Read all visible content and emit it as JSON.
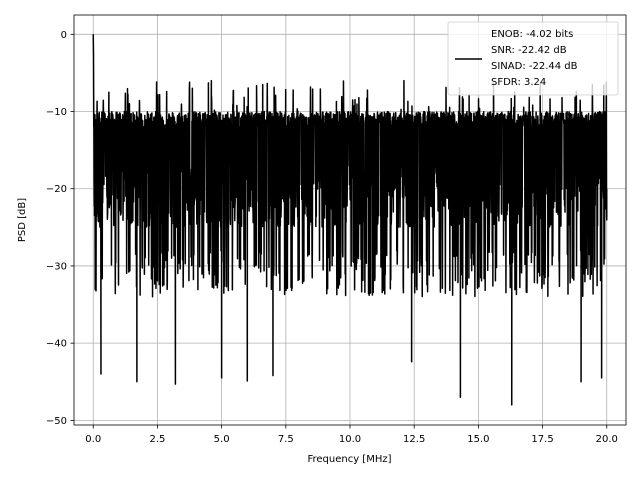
{
  "chart_data": {
    "type": "line",
    "title": "",
    "xlabel": "Frequency [MHz]",
    "ylabel": "PSD [dB]",
    "xlim": [
      -0.75,
      20.75
    ],
    "ylim": [
      -50.6,
      2.5
    ],
    "xticks": [
      0.0,
      2.5,
      5.0,
      7.5,
      10.0,
      12.5,
      15.0,
      17.5,
      20.0
    ],
    "xtick_labels": [
      "0.0",
      "2.5",
      "5.0",
      "7.5",
      "10.0",
      "12.5",
      "15.0",
      "17.5",
      "20.0"
    ],
    "yticks": [
      0,
      -10,
      -20,
      -30,
      -40,
      -50
    ],
    "ytick_labels": [
      "0",
      "−10",
      "−20",
      "−30",
      "−40",
      "−50"
    ],
    "grid": true,
    "legend_position": "top-right",
    "legend": {
      "lines": [
        "ENOB: -4.02 bits",
        "SNR: -22.42 dB",
        "SINAD: -22.44 dB",
        "SFDR: 3.24"
      ]
    },
    "series": [
      {
        "color": "#000000",
        "x_range": [
          0.0,
          20.0
        ],
        "summary": {
          "peak_at_dc": 0.0,
          "noise_floor_band": [
            -25,
            -12
          ],
          "upper_envelope": [
            -11,
            -6
          ],
          "lower_spikes": [
            -48,
            -36
          ]
        },
        "points": [
          [
            0.0,
            0.0
          ],
          [
            0.05,
            -18.0
          ],
          [
            0.3,
            -44.0
          ],
          [
            1.7,
            -45.0
          ],
          [
            3.2,
            -45.3
          ],
          [
            5.0,
            -44.5
          ],
          [
            6.0,
            -44.9
          ],
          [
            7.0,
            -44.2
          ],
          [
            12.4,
            -42.4
          ],
          [
            14.3,
            -47.0
          ],
          [
            16.3,
            -48.0
          ],
          [
            19.0,
            -45.0
          ],
          [
            19.8,
            -44.5
          ],
          [
            4.6,
            -6.0
          ],
          [
            6.6,
            -6.5
          ],
          [
            12.1,
            -6.0
          ],
          [
            20.0,
            -20.0
          ]
        ]
      }
    ]
  }
}
